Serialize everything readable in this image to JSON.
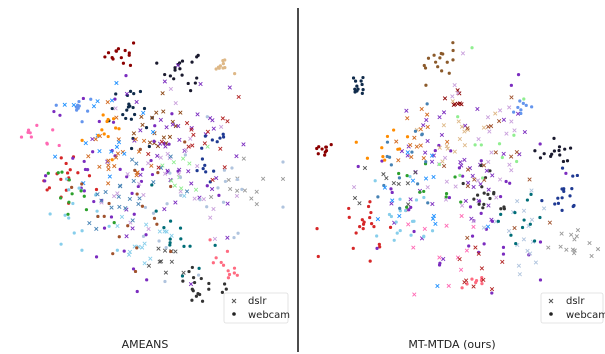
{
  "chart_data": [
    {
      "type": "scatter",
      "title": "AMEANS",
      "legend": {
        "placement": "bottom-right",
        "entries": [
          {
            "label": "dslr",
            "marker": "x"
          },
          {
            "label": "webcam",
            "marker": "o"
          }
        ]
      },
      "axes_visible": false,
      "grid": false,
      "xlim": [
        0,
        100
      ],
      "ylim": [
        0,
        100
      ],
      "clusters": [
        {
          "color": "#8b0000",
          "domain": "webcam",
          "x": 41,
          "y": 90,
          "spread": 2.5,
          "n": 14
        },
        {
          "color": "#1a1a2e",
          "domain": "webcam",
          "x": 63,
          "y": 85,
          "spread": 3.5,
          "n": 18
        },
        {
          "color": "#deb887",
          "domain": "webcam",
          "x": 78,
          "y": 87,
          "spread": 2.2,
          "n": 10
        },
        {
          "color": "#0f2a4a",
          "domain": "webcam",
          "x": 45,
          "y": 71,
          "spread": 4.5,
          "n": 22
        },
        {
          "color": "#6495ed",
          "domain": "webcam",
          "x": 26,
          "y": 72,
          "spread": 2.2,
          "n": 10
        },
        {
          "color": "#ff69b4",
          "domain": "webcam",
          "x": 12,
          "y": 64,
          "spread": 3,
          "n": 10
        },
        {
          "color": "#d62728",
          "domain": "webcam",
          "x": 21,
          "y": 48,
          "spread": 4.5,
          "n": 18
        },
        {
          "color": "#8b4513",
          "domain": "dslr",
          "x": 54,
          "y": 66,
          "spread": 5,
          "n": 18
        },
        {
          "color": "#7b2cbf",
          "domain": "dslr",
          "x": 60,
          "y": 55,
          "spread": 14,
          "n": 45
        },
        {
          "color": "#7b2cbf",
          "domain": "webcam",
          "x": 45,
          "y": 48,
          "spread": 15,
          "n": 45
        },
        {
          "color": "#1f3a93",
          "domain": "webcam",
          "x": 73,
          "y": 56,
          "spread": 4,
          "n": 14
        },
        {
          "color": "#d2691e",
          "domain": "dslr",
          "x": 40,
          "y": 56,
          "spread": 6,
          "n": 22
        },
        {
          "color": "#87ceeb",
          "domain": "webcam",
          "x": 27,
          "y": 35,
          "spread": 7,
          "n": 18
        },
        {
          "color": "#87ceeb",
          "domain": "dslr",
          "x": 52,
          "y": 27,
          "spread": 7,
          "n": 16
        },
        {
          "color": "#333333",
          "domain": "webcam",
          "x": 71,
          "y": 12,
          "spread": 3.5,
          "n": 18
        },
        {
          "color": "#ff6b81",
          "domain": "webcam",
          "x": 79,
          "y": 19,
          "spread": 3,
          "n": 12
        },
        {
          "color": "#006d77",
          "domain": "webcam",
          "x": 61,
          "y": 32,
          "spread": 7,
          "n": 14
        },
        {
          "color": "#2ca02c",
          "domain": "webcam",
          "x": 24,
          "y": 42,
          "spread": 5,
          "n": 12
        },
        {
          "color": "#999999",
          "domain": "dslr",
          "x": 88,
          "y": 48,
          "spread": 5,
          "n": 12
        },
        {
          "color": "#1e90ff",
          "domain": "dslr",
          "x": 36,
          "y": 62,
          "spread": 9,
          "n": 18
        },
        {
          "color": "#c9a0dc",
          "domain": "dslr",
          "x": 55,
          "y": 45,
          "spread": 13,
          "n": 28
        },
        {
          "color": "#555555",
          "domain": "dslr",
          "x": 58,
          "y": 18,
          "spread": 4,
          "n": 10
        },
        {
          "color": "#ff8c00",
          "domain": "webcam",
          "x": 35,
          "y": 64,
          "spread": 5,
          "n": 12
        },
        {
          "color": "#90ee90",
          "domain": "dslr",
          "x": 66,
          "y": 50,
          "spread": 5,
          "n": 10
        },
        {
          "color": "#b0c4de",
          "domain": "webcam",
          "x": 70,
          "y": 40,
          "spread": 12,
          "n": 26
        },
        {
          "color": "#4682b4",
          "domain": "dslr",
          "x": 40,
          "y": 42,
          "spread": 10,
          "n": 22
        },
        {
          "color": "#a0522d",
          "domain": "webcam",
          "x": 49,
          "y": 40,
          "spread": 12,
          "n": 20
        },
        {
          "color": "#b22222",
          "domain": "dslr",
          "x": 66,
          "y": 62,
          "spread": 10,
          "n": 16
        }
      ]
    },
    {
      "type": "scatter",
      "title": "MT-MTDA (ours)",
      "legend": {
        "placement": "bottom-right",
        "entries": [
          {
            "label": "dslr",
            "marker": "x"
          },
          {
            "label": "webcam",
            "marker": "o"
          }
        ]
      },
      "axes_visible": false,
      "grid": false,
      "xlim": [
        0,
        100
      ],
      "ylim": [
        0,
        100
      ],
      "clusters": [
        {
          "color": "#8b0000",
          "domain": "webcam",
          "x": 4,
          "y": 58,
          "spread": 1.3,
          "n": 10
        },
        {
          "color": "#0f2a4a",
          "domain": "webcam",
          "x": 17,
          "y": 79,
          "spread": 2,
          "n": 12
        },
        {
          "color": "#8b5a2b",
          "domain": "webcam",
          "x": 45,
          "y": 88,
          "spread": 2.8,
          "n": 16
        },
        {
          "color": "#8b0000",
          "domain": "dslr",
          "x": 51,
          "y": 75,
          "spread": 2,
          "n": 8
        },
        {
          "color": "#6495ed",
          "domain": "webcam",
          "x": 74,
          "y": 72,
          "spread": 1.5,
          "n": 8
        },
        {
          "color": "#1a1a2e",
          "domain": "webcam",
          "x": 84,
          "y": 57,
          "spread": 3,
          "n": 14
        },
        {
          "color": "#1f3a93",
          "domain": "webcam",
          "x": 87,
          "y": 43,
          "spread": 4,
          "n": 16
        },
        {
          "color": "#d62728",
          "domain": "webcam",
          "x": 19,
          "y": 33,
          "spread": 5,
          "n": 22
        },
        {
          "color": "#7b2cbf",
          "domain": "dslr",
          "x": 50,
          "y": 50,
          "spread": 14,
          "n": 45
        },
        {
          "color": "#7b2cbf",
          "domain": "webcam",
          "x": 52,
          "y": 40,
          "spread": 16,
          "n": 40
        },
        {
          "color": "#333333",
          "domain": "webcam",
          "x": 61,
          "y": 44,
          "spread": 4,
          "n": 18
        },
        {
          "color": "#ff6b81",
          "domain": "webcam",
          "x": 58,
          "y": 13,
          "spread": 2.5,
          "n": 8
        },
        {
          "color": "#d2691e",
          "domain": "dslr",
          "x": 37,
          "y": 62,
          "spread": 5,
          "n": 14
        },
        {
          "color": "#87ceeb",
          "domain": "webcam",
          "x": 30,
          "y": 35,
          "spread": 8,
          "n": 20
        },
        {
          "color": "#999999",
          "domain": "dslr",
          "x": 91,
          "y": 25,
          "spread": 4,
          "n": 14
        },
        {
          "color": "#b0c4de",
          "domain": "dslr",
          "x": 73,
          "y": 28,
          "spread": 8,
          "n": 18
        },
        {
          "color": "#deb887",
          "domain": "dslr",
          "x": 49,
          "y": 64,
          "spread": 6,
          "n": 16
        },
        {
          "color": "#006d77",
          "domain": "webcam",
          "x": 71,
          "y": 35,
          "spread": 5,
          "n": 12
        },
        {
          "color": "#2ca02c",
          "domain": "webcam",
          "x": 44,
          "y": 45,
          "spread": 5,
          "n": 10
        },
        {
          "color": "#c9a0dc",
          "domain": "dslr",
          "x": 55,
          "y": 58,
          "spread": 13,
          "n": 28
        },
        {
          "color": "#555555",
          "domain": "dslr",
          "x": 28,
          "y": 45,
          "spread": 6,
          "n": 10
        },
        {
          "color": "#4682b4",
          "domain": "webcam",
          "x": 33,
          "y": 53,
          "spread": 8,
          "n": 16
        },
        {
          "color": "#a0522d",
          "domain": "dslr",
          "x": 63,
          "y": 52,
          "spread": 10,
          "n": 18
        },
        {
          "color": "#ff69b4",
          "domain": "dslr",
          "x": 47,
          "y": 26,
          "spread": 7,
          "n": 12
        },
        {
          "color": "#90ee90",
          "domain": "webcam",
          "x": 60,
          "y": 64,
          "spread": 9,
          "n": 12
        },
        {
          "color": "#1e90ff",
          "domain": "dslr",
          "x": 40,
          "y": 40,
          "spread": 9,
          "n": 14
        },
        {
          "color": "#ff8c00",
          "domain": "webcam",
          "x": 26,
          "y": 60,
          "spread": 5,
          "n": 10
        },
        {
          "color": "#b22222",
          "domain": "dslr",
          "x": 56,
          "y": 21,
          "spread": 5,
          "n": 10
        }
      ]
    }
  ]
}
